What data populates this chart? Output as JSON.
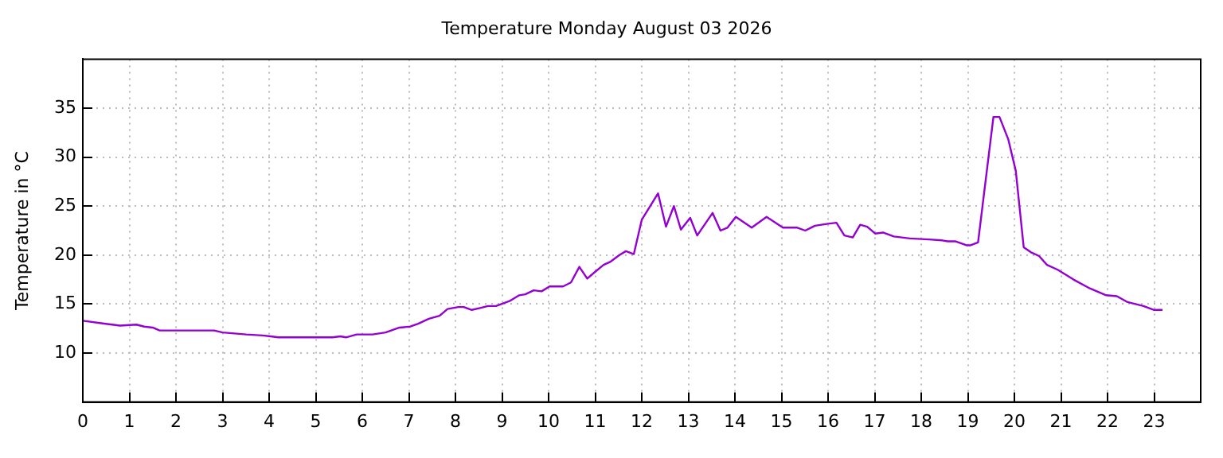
{
  "chart_data": {
    "type": "line",
    "title": "Temperature Monday August 03 2026",
    "ylabel": "Temperature in °C",
    "xlim": [
      0,
      24
    ],
    "xticks": [
      0,
      1,
      2,
      3,
      4,
      5,
      6,
      7,
      8,
      9,
      10,
      11,
      12,
      13,
      14,
      15,
      16,
      17,
      18,
      19,
      20,
      21,
      22,
      23
    ],
    "ylim": [
      5,
      40
    ],
    "yticks": [
      10,
      15,
      20,
      25,
      30,
      35
    ],
    "grid": true,
    "legend": false,
    "marker": "none",
    "line_style": "solid",
    "series": [
      {
        "color": "#9400d3",
        "x": [
          0,
          0.46,
          0.8,
          1.15,
          1.32,
          1.5,
          1.65,
          2.82,
          3.0,
          3.51,
          3.86,
          4.03,
          4.2,
          5.36,
          5.53,
          5.65,
          5.88,
          6.22,
          6.5,
          6.8,
          7.03,
          7.2,
          7.43,
          7.66,
          7.83,
          8.06,
          8.18,
          8.35,
          8.53,
          8.7,
          8.87,
          9.16,
          9.37,
          9.5,
          9.68,
          9.85,
          10.02,
          10.31,
          10.48,
          10.66,
          10.83,
          11.0,
          11.18,
          11.32,
          11.52,
          11.66,
          11.83,
          12.0,
          12.35,
          12.52,
          12.69,
          12.84,
          13.04,
          13.19,
          13.52,
          13.69,
          13.84,
          14.02,
          14.36,
          14.68,
          15.03,
          15.34,
          15.51,
          15.72,
          16.0,
          16.18,
          16.35,
          16.53,
          16.69,
          16.84,
          17.01,
          17.18,
          17.41,
          17.76,
          18.16,
          18.45,
          18.57,
          18.74,
          18.97,
          19.06,
          19.22,
          19.55,
          19.68,
          19.87,
          20.03,
          20.2,
          20.35,
          20.53,
          20.7,
          20.93,
          21.27,
          21.62,
          21.97,
          22.2,
          22.43,
          22.77,
          23.0,
          23.18
        ],
        "values": [
          13.3,
          13.0,
          12.8,
          12.9,
          12.7,
          12.6,
          12.3,
          12.3,
          12.1,
          11.9,
          11.8,
          11.7,
          11.6,
          11.6,
          11.7,
          11.6,
          11.9,
          11.9,
          12.1,
          12.6,
          12.7,
          13.0,
          13.5,
          13.8,
          14.5,
          14.7,
          14.7,
          14.4,
          14.6,
          14.8,
          14.8,
          15.3,
          15.9,
          16.0,
          16.4,
          16.3,
          16.8,
          16.8,
          17.2,
          18.8,
          17.6,
          18.3,
          19.0,
          19.3,
          20.0,
          20.4,
          20.1,
          23.6,
          26.3,
          22.9,
          25.0,
          22.6,
          23.8,
          22.0,
          24.3,
          22.5,
          22.8,
          23.9,
          22.8,
          23.9,
          22.8,
          22.8,
          22.5,
          23.0,
          23.2,
          23.3,
          22.0,
          21.8,
          23.1,
          22.9,
          22.2,
          22.3,
          21.9,
          21.7,
          21.6,
          21.5,
          21.4,
          21.4,
          21.0,
          21.0,
          21.3,
          34.1,
          34.1,
          31.8,
          28.6,
          20.8,
          20.3,
          19.9,
          19.0,
          18.5,
          17.5,
          16.6,
          15.9,
          15.8,
          15.2,
          14.8,
          14.4,
          14.4
        ]
      }
    ]
  }
}
